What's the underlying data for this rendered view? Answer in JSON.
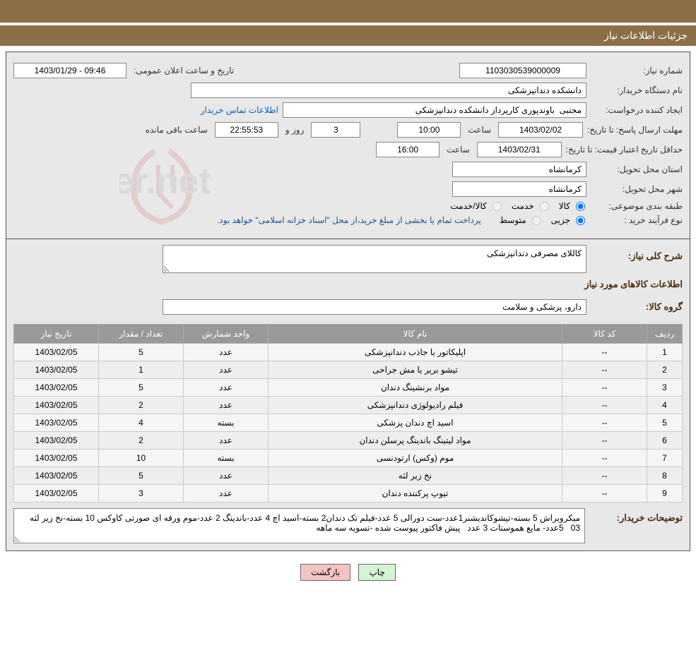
{
  "header": {
    "title": "جزئیات اطلاعات نیاز"
  },
  "form": {
    "req_number_label": "شماره نیاز:",
    "req_number": "1103030539000009",
    "announce_label": "تاریخ و ساعت اعلان عمومی:",
    "announce_value": "1403/01/29 - 09:46",
    "buyer_org_label": "نام دستگاه خریدار:",
    "buyer_org": "دانشکده دندانپزشکی",
    "creator_label": "ایجاد کننده درخواست:",
    "creator": "مجتبی  باوندپوری کارپرداز دانشکده دندانپزشکی",
    "contact_link": "اطلاعات تماس خریدار",
    "deadline_label": "مهلت ارسال پاسخ:",
    "deadline_to_label": "تا تاریخ:",
    "deadline_date": "1403/02/02",
    "time_label": "ساعت",
    "deadline_time": "10:00",
    "days_remaining": "3",
    "days_label": "روز و",
    "time_remaining": "22:55:53",
    "remaining_label": "ساعت باقی مانده",
    "validity_label": "حداقل تاریخ اعتبار قیمت:",
    "validity_to_label": "تا تاریخ:",
    "validity_date": "1403/02/31",
    "validity_time": "16:00",
    "province_label": "استان محل تحویل:",
    "province": "کرمانشاه",
    "city_label": "شهر محل تحویل:",
    "city": "کرمانشاه",
    "category_label": "طبقه بندی موضوعی:",
    "cat_goods": "کالا",
    "cat_service": "خدمت",
    "cat_both": "کالا/خدمت",
    "buytype_label": "نوع فرآیند خرید :",
    "buytype_small": "جزیی",
    "buytype_medium": "متوسط",
    "buytype_note": "پرداخت تمام یا بخشی از مبلغ خرید،از محل \"اسناد خزانه اسلامی\" خواهد بود.",
    "desc_label": "شرح کلی نیاز:",
    "desc_value": "کاللای مصرفی دندانپزشکی",
    "items_section_title": "اطلاعات کالاهای مورد نیاز",
    "group_label": "گروه کالا:",
    "group_value": "دارو، پزشکی و سلامت"
  },
  "table": {
    "headers": {
      "idx": "ردیف",
      "code": "کد کالا",
      "name": "نام کالا",
      "unit": "واحد شمارش",
      "qty": "تعداد / مقدار",
      "date": "تاریخ نیاز"
    },
    "rows": [
      {
        "idx": "1",
        "code": "--",
        "name": "اپلیکاتور یا جاذب دندانپزشکی",
        "unit": "عدد",
        "qty": "5",
        "date": "1403/02/05"
      },
      {
        "idx": "2",
        "code": "--",
        "name": "تیشو بریر یا مش جراحی",
        "unit": "عدد",
        "qty": "1",
        "date": "1403/02/05"
      },
      {
        "idx": "3",
        "code": "--",
        "name": "مواد برنشینگ دندان",
        "unit": "عدد",
        "qty": "5",
        "date": "1403/02/05"
      },
      {
        "idx": "4",
        "code": "--",
        "name": "فیلم رادیولوژی دندانپزشکی",
        "unit": "عدد",
        "qty": "2",
        "date": "1403/02/05"
      },
      {
        "idx": "5",
        "code": "--",
        "name": "اسید اچ دندان پزشکی",
        "unit": "بسته",
        "qty": "4",
        "date": "1403/02/05"
      },
      {
        "idx": "6",
        "code": "--",
        "name": "مواد لیتینگ باندینگ پرسلن دندان",
        "unit": "عدد",
        "qty": "2",
        "date": "1403/02/05"
      },
      {
        "idx": "7",
        "code": "--",
        "name": "موم (وکس) ارتودنسی",
        "unit": "بسته",
        "qty": "10",
        "date": "1403/02/05"
      },
      {
        "idx": "8",
        "code": "--",
        "name": "نخ زیر لثه",
        "unit": "عدد",
        "qty": "5",
        "date": "1403/02/05"
      },
      {
        "idx": "9",
        "code": "--",
        "name": "تیوپ پرکننده دندان",
        "unit": "عدد",
        "qty": "3",
        "date": "1403/02/05"
      }
    ]
  },
  "notes": {
    "label": "توضیحات خریدار:",
    "text": "میکروبراش 5 بسته-تیشوکاندیشنر1عدد-ست دورالی 5 عدد-فیلم تک دندان2 بسته-اسید اچ 4 عدد-باندینگ 2 عدد-موم ورقه ای صورتی کاوکس 10 بسته-نخ زیر لثه 03   5عدد- مایع هموستات 3 عدد   پیش فاکتور پیوست شده -تسویه سه ماهه"
  },
  "buttons": {
    "print": "چاپ",
    "back": "بازگشت"
  },
  "colors": {
    "header_bg": "#8b6f47",
    "panel_bg": "#e8e8e8",
    "th_bg": "#999999",
    "link": "#0066cc",
    "section_title": "#4a2c0a"
  }
}
